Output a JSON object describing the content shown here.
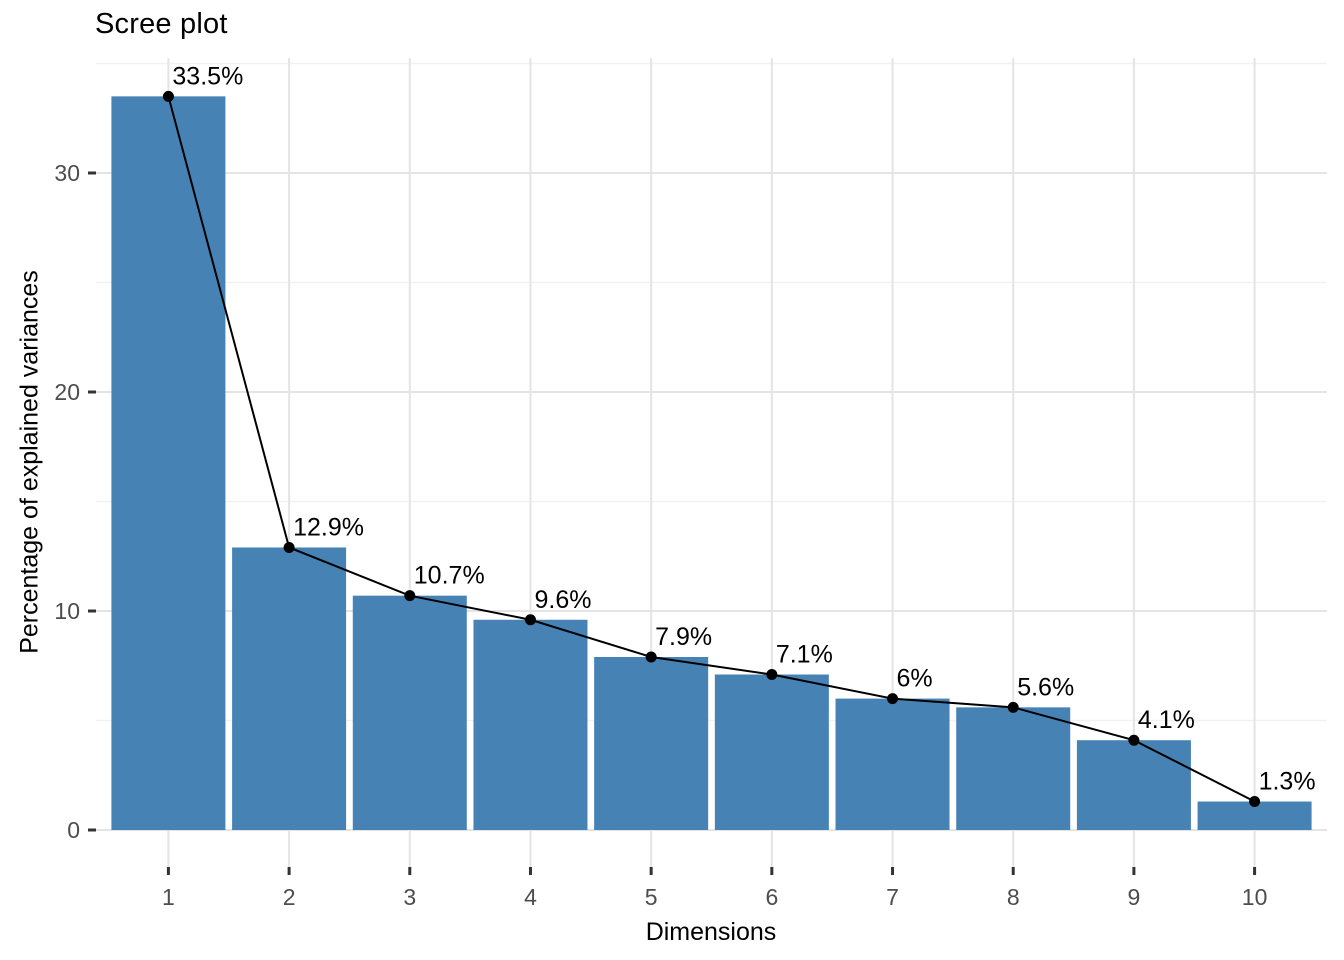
{
  "title": "Scree plot",
  "colors": {
    "bar": "#4682B4",
    "line": "#000000",
    "point": "#000000",
    "grid_major": "#e4e4e4",
    "grid_minor": "#f1f1f1",
    "tick": "#333333",
    "tick_label": "#4d4d4d",
    "text": "#000000",
    "background": "#ffffff"
  },
  "chart_data": {
    "type": "bar",
    "subtype": "bar-with-line-overlay (scree plot)",
    "title": "Scree plot",
    "xlabel": "Dimensions",
    "ylabel": "Percentage of explained variances",
    "categories": [
      "1",
      "2",
      "3",
      "4",
      "5",
      "6",
      "7",
      "8",
      "9",
      "10"
    ],
    "values": [
      33.5,
      12.9,
      10.7,
      9.6,
      7.9,
      7.1,
      6.0,
      5.6,
      4.1,
      1.3
    ],
    "point_labels": [
      "33.5%",
      "12.9%",
      "10.7%",
      "9.6%",
      "7.9%",
      "7.1%",
      "6%",
      "5.6%",
      "4.1%",
      "1.3%"
    ],
    "series": [
      {
        "name": "explained-variance-bars",
        "type": "bar",
        "values": [
          33.5,
          12.9,
          10.7,
          9.6,
          7.9,
          7.1,
          6.0,
          5.6,
          4.1,
          1.3
        ]
      },
      {
        "name": "explained-variance-line",
        "type": "line+points",
        "values": [
          33.5,
          12.9,
          10.7,
          9.6,
          7.9,
          7.1,
          6.0,
          5.6,
          4.1,
          1.3
        ]
      }
    ],
    "y_ticks": [
      0,
      10,
      20,
      30
    ],
    "y_minor_ticks": [
      5,
      15,
      25,
      35
    ],
    "ylim": [
      -1.7,
      35.2
    ],
    "grid": true,
    "legend": "none"
  }
}
